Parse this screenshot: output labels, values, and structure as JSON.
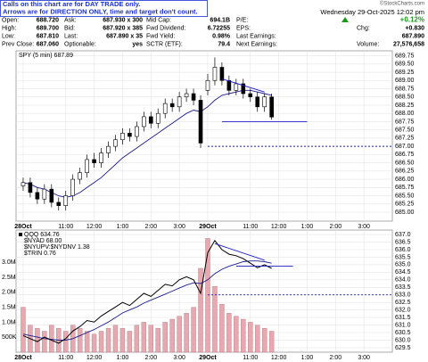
{
  "notes": [
    "Calls on this chart are for DAY TRADE only.",
    "Arrows are for DIRECTION ONLY, time and target don't count."
  ],
  "header": {
    "credit": "©StockCharts.com",
    "date": "Wednesday  29-Oct-2025  12:02 pm"
  },
  "quote": {
    "rows": [
      [
        {
          "label": "Open:",
          "value": "688.720"
        },
        {
          "label": "Ask:",
          "value": "687.930 x 300"
        },
        {
          "label": "Mid Cap:",
          "value": "694.1B"
        },
        {
          "label": "P/E:"
        },
        {
          "value": "+0.12%"
        }
      ],
      [
        {
          "label": "High:",
          "value": "689.700"
        },
        {
          "label": "Bid:",
          "value": "687.920 x 385"
        },
        {
          "label": "Fwd Dividend:",
          "value": "6.72255"
        },
        {
          "label": "EPS:"
        },
        {
          "label": "Chg:",
          "value": "+0.830"
        }
      ],
      [
        {
          "label": "Low:",
          "value": "687.810"
        },
        {
          "label": "Last:",
          "value": "687.890 x 35"
        },
        {
          "label": "Fwd Yield:",
          "value": "0.98%"
        },
        {
          "label": "Last Earnings:"
        },
        {
          "value": "687.890"
        }
      ],
      [
        {
          "label": "Prev Close:",
          "value": "687.060"
        },
        {
          "label": "Optionable:",
          "value": "yes"
        },
        {
          "label": "SCTR (ETF):",
          "value": "79.4"
        },
        {
          "label": "Next Earnings:"
        },
        {
          "label": "Volume:",
          "value": "27,576,658"
        }
      ]
    ]
  },
  "chart_data": [
    {
      "type": "candlestick",
      "legend": "SPY (5 min) 687.89",
      "x": [
        0,
        1,
        2,
        3,
        4,
        5,
        6,
        7,
        8,
        9,
        10,
        11,
        12,
        13,
        14,
        15,
        16,
        17,
        18,
        19,
        20,
        21,
        22,
        23,
        24,
        25,
        26,
        27,
        28,
        29,
        30,
        31,
        32,
        33,
        34,
        35
      ],
      "open": [
        685.8,
        685.9,
        685.6,
        685.4,
        685.7,
        685.3,
        685.2,
        685.5,
        686.0,
        686.2,
        686.6,
        686.5,
        686.8,
        687.0,
        687.2,
        687.4,
        687.3,
        687.6,
        687.9,
        687.7,
        688.0,
        688.3,
        688.2,
        688.5,
        688.6,
        688.4,
        688.7,
        689.0,
        689.4,
        689.0,
        688.7,
        688.9,
        688.6,
        688.5,
        688.2,
        688.5
      ],
      "high": [
        686.05,
        686.05,
        685.75,
        685.85,
        685.85,
        685.45,
        685.65,
        686.15,
        686.35,
        686.75,
        686.8,
        686.95,
        687.15,
        687.35,
        687.55,
        687.55,
        687.75,
        688.05,
        688.05,
        688.15,
        688.45,
        688.45,
        688.65,
        688.75,
        688.75,
        688.55,
        689.2,
        689.7,
        689.55,
        689.15,
        689.05,
        689.05,
        688.75,
        688.65,
        688.6,
        688.6
      ],
      "low": [
        685.65,
        685.45,
        685.25,
        685.25,
        685.15,
        685.05,
        685.05,
        685.35,
        685.85,
        686.05,
        686.35,
        686.35,
        686.65,
        686.85,
        687.05,
        687.15,
        687.15,
        687.45,
        687.55,
        687.55,
        687.85,
        688.05,
        688.05,
        688.35,
        688.25,
        686.95,
        688.55,
        688.85,
        688.85,
        688.55,
        688.55,
        688.45,
        688.35,
        688.05,
        688.05,
        687.81
      ],
      "close": [
        685.9,
        685.6,
        685.4,
        685.7,
        685.3,
        685.2,
        685.5,
        686.0,
        686.2,
        686.6,
        686.5,
        686.8,
        687.0,
        687.2,
        687.4,
        687.3,
        687.6,
        687.9,
        687.7,
        688.0,
        688.3,
        688.2,
        688.5,
        688.6,
        688.4,
        687.1,
        689.0,
        689.4,
        689.0,
        688.7,
        688.9,
        688.6,
        688.5,
        688.2,
        688.5,
        687.89
      ],
      "ma": {
        "color": "#1c1c8c",
        "values": [
          685.9,
          685.85,
          685.75,
          685.7,
          685.6,
          685.5,
          685.45,
          685.5,
          685.6,
          685.75,
          685.9,
          686.05,
          686.25,
          686.45,
          686.65,
          686.8,
          686.95,
          687.1,
          687.25,
          687.4,
          687.55,
          687.7,
          687.85,
          688.0,
          688.1,
          688.05,
          688.2,
          688.4,
          688.55,
          688.6,
          688.65,
          688.7,
          688.7,
          688.65,
          688.6,
          688.55
        ]
      },
      "hlines": [
        {
          "value": 687.75,
          "color": "#1c1cc8",
          "x": [
            28,
            40
          ]
        },
        {
          "value": 687.0,
          "color": "#1c1cc8",
          "dashed": true,
          "x": [
            26,
            52
          ]
        }
      ],
      "trendline": {
        "color": "#1c1cc8",
        "x": [
          28,
          34
        ],
        "y": [
          689.05,
          688.65
        ]
      },
      "xlim": [
        -1,
        52
      ],
      "xticks": [
        {
          "value": 0,
          "label": "28Oct"
        },
        {
          "value": 6,
          "label": "11:00"
        },
        {
          "value": 10,
          "label": "12:00"
        },
        {
          "value": 14,
          "label": "1:00"
        },
        {
          "value": 18,
          "label": "2:00"
        },
        {
          "value": 22,
          "label": "3:00"
        },
        {
          "value": 26,
          "label": "29Oct"
        },
        {
          "value": 32,
          "label": "11:00"
        },
        {
          "value": 36,
          "label": "12:00"
        },
        {
          "value": 40,
          "label": "1:00"
        },
        {
          "value": 44,
          "label": "2:00"
        },
        {
          "value": 48,
          "label": "3:00"
        }
      ],
      "ylim": [
        684.73,
        689.9
      ],
      "yticks": [
        {
          "value": 685,
          "label": "685.00"
        },
        685.25,
        {
          "value": 685.5,
          "label": "685.50"
        },
        685.75,
        {
          "value": 686,
          "label": "686.00"
        },
        686.25,
        {
          "value": 686.5,
          "label": "686.50"
        },
        686.75,
        {
          "value": 687,
          "label": "687.00"
        },
        687.25,
        {
          "value": 687.5,
          "label": "687.50"
        },
        687.75,
        {
          "value": 688,
          "label": "688.00"
        },
        688.25,
        {
          "value": 688.5,
          "label": "688.50"
        },
        688.75,
        {
          "value": 689,
          "label": "689.00"
        },
        689.25,
        {
          "value": 689.5,
          "label": "689.50"
        },
        689.75
      ],
      "grid": true
    },
    {
      "type": "line",
      "indicators": [
        "$NYAD 68.00",
        "$NYUPV:$NYDNV 1.38",
        "$TRIN 0.76"
      ],
      "x": [
        0,
        1,
        2,
        3,
        4,
        5,
        6,
        7,
        8,
        9,
        10,
        11,
        12,
        13,
        14,
        15,
        16,
        17,
        18,
        19,
        20,
        21,
        22,
        23,
        24,
        25,
        26,
        27,
        28,
        29,
        30,
        31,
        32,
        33,
        34,
        35
      ],
      "series": [
        {
          "name": "QQQ 634.76",
          "color": "#000000",
          "axis": "y2",
          "values": [
            630.3,
            630.1,
            629.9,
            630.2,
            630.0,
            629.8,
            630.1,
            630.6,
            630.9,
            631.3,
            631.2,
            631.6,
            631.9,
            632.2,
            632.5,
            632.3,
            632.7,
            633.1,
            632.9,
            633.3,
            633.7,
            633.6,
            634.0,
            634.2,
            634.0,
            633.1,
            635.8,
            636.6,
            636.0,
            635.7,
            635.6,
            635.4,
            635.1,
            634.8,
            635.0,
            634.76
          ]
        }
      ],
      "ma": {
        "color": "#1c1c8c",
        "values": [
          630.4,
          630.3,
          630.2,
          630.1,
          630.05,
          630.0,
          630.0,
          630.1,
          630.3,
          630.5,
          630.7,
          630.95,
          631.2,
          631.5,
          631.8,
          632.0,
          632.2,
          632.45,
          632.65,
          632.85,
          633.05,
          633.25,
          633.45,
          633.65,
          633.8,
          633.75,
          634.0,
          634.4,
          634.7,
          634.9,
          635.05,
          635.2,
          635.25,
          635.25,
          635.2,
          635.1
        ]
      },
      "volume": {
        "color": "#e8a8b0",
        "values": [
          1500000,
          900000,
          800000,
          700000,
          900000,
          800000,
          700000,
          900000,
          800000,
          700000,
          600000,
          700000,
          800000,
          900000,
          800000,
          700000,
          900000,
          1000000,
          900000,
          800000,
          1000000,
          1100000,
          1200000,
          1300000,
          1500000,
          2800000,
          3800000,
          2200000,
          1600000,
          1300000,
          1200000,
          1100000,
          1000000,
          900000,
          800000,
          700000
        ]
      },
      "hlines": [
        {
          "value": 634.9,
          "color": "#1c1cc8",
          "x": [
            30,
            38
          ]
        },
        {
          "value": 633.0,
          "color": "#1c1cc8",
          "dashed": true,
          "x": [
            26,
            52
          ]
        }
      ],
      "trendline": {
        "color": "#1c1cc8",
        "x": [
          27,
          34
        ],
        "y": [
          636.4,
          635.3
        ]
      },
      "xlim": [
        -1,
        52
      ],
      "xticks": [
        {
          "value": 0,
          "label": "28Oct"
        },
        {
          "value": 6,
          "label": "11:00"
        },
        {
          "value": 10,
          "label": "12:00"
        },
        {
          "value": 14,
          "label": "1:00"
        },
        {
          "value": 18,
          "label": "2:00"
        },
        {
          "value": 22,
          "label": "3:00"
        },
        {
          "value": 26,
          "label": "29Oct"
        },
        {
          "value": 32,
          "label": "11:00"
        },
        {
          "value": 36,
          "label": "12:00"
        },
        {
          "value": 40,
          "label": "1:00"
        },
        {
          "value": 44,
          "label": "2:00"
        },
        {
          "value": 48,
          "label": "3:00"
        }
      ],
      "ylim": [
        0,
        4080000
      ],
      "yticks": [
        {
          "value": 500000,
          "label": "500K"
        },
        {
          "value": 1000000,
          "label": "1.0M"
        },
        {
          "value": 1500000,
          "label": "1.5M"
        },
        {
          "value": 2000000,
          "label": "2.0M"
        },
        {
          "value": 2500000,
          "label": "2.5M"
        },
        {
          "value": 3000000,
          "label": "3.0M"
        }
      ],
      "y2lim": [
        629.2,
        637.3
      ],
      "y2ticks": [
        629.5,
        {
          "value": 630,
          "label": "630.0"
        },
        630.5,
        {
          "value": 631,
          "label": "631.0"
        },
        631.5,
        {
          "value": 632,
          "label": "632.0"
        },
        632.5,
        {
          "value": 633,
          "label": "633.0"
        },
        633.5,
        {
          "value": 634,
          "label": "634.0"
        },
        634.5,
        {
          "value": 635,
          "label": "635.0"
        },
        635.5,
        {
          "value": 636,
          "label": "636.0"
        },
        636.5,
        {
          "value": 637,
          "label": "637.0"
        }
      ],
      "grid": true
    }
  ]
}
